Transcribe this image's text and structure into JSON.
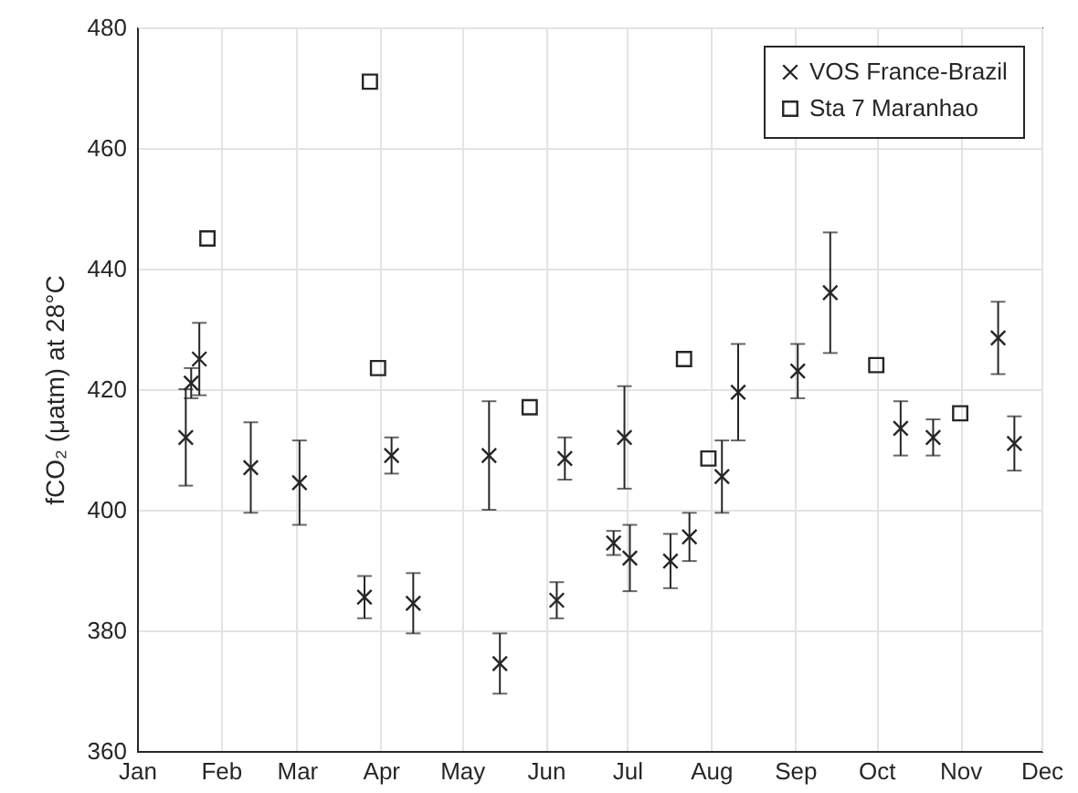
{
  "chart_data": {
    "type": "scatter",
    "ylabel": "fCO₂ (μatm) at 28°C",
    "xlim": [
      "--01-01",
      "--12-01"
    ],
    "xticks": [
      {
        "value": "--01-01",
        "label": "Jan"
      },
      {
        "value": "--02-01",
        "label": "Feb"
      },
      {
        "value": "--03-01",
        "label": "Mar"
      },
      {
        "value": "--04-01",
        "label": "Apr"
      },
      {
        "value": "--05-01",
        "label": "May"
      },
      {
        "value": "--06-01",
        "label": "Jun"
      },
      {
        "value": "--07-01",
        "label": "Jul"
      },
      {
        "value": "--08-01",
        "label": "Aug"
      },
      {
        "value": "--09-01",
        "label": "Sep"
      },
      {
        "value": "--10-01",
        "label": "Oct"
      },
      {
        "value": "--11-01",
        "label": "Nov"
      },
      {
        "value": "--12-01",
        "label": "Dec"
      }
    ],
    "ylim": [
      360,
      480
    ],
    "yticks": [
      360,
      380,
      400,
      420,
      440,
      460,
      480
    ],
    "grid": true,
    "legend": "top right",
    "series": [
      {
        "name": "VOS France-Brazil",
        "color": "#262626",
        "marker": "cross",
        "x": [
          "--01-19",
          "--01-21",
          "--01-24",
          "--02-12",
          "--03-02",
          "--03-26",
          "--04-05",
          "--04-13",
          "--05-11",
          "--05-15",
          "--06-05",
          "--06-08",
          "--06-26",
          "--06-30",
          "--07-02",
          "--07-17",
          "--07-24",
          "--08-05",
          "--08-11",
          "--09-02",
          "--09-14",
          "--10-10",
          "--10-22",
          "--11-15",
          "--11-21"
        ],
        "values": [
          412,
          421,
          425,
          407,
          404.5,
          385.5,
          409,
          384.5,
          409,
          374.5,
          385,
          408.5,
          394.5,
          412,
          392,
          391.5,
          395.5,
          405.5,
          419.5,
          423,
          436,
          413.5,
          412,
          428.5,
          411
        ],
        "errors": [
          8,
          2.5,
          6,
          7.5,
          7,
          3.5,
          3,
          5,
          9,
          5,
          3,
          3.5,
          2,
          8.5,
          5.5,
          4.5,
          4,
          6,
          8,
          4.5,
          10,
          4.5,
          3,
          6,
          4.5
        ]
      },
      {
        "name": "Sta 7 Maranhao",
        "color": "#262626",
        "marker": "square",
        "x": [
          "--01-27",
          "--03-28",
          "--03-31",
          "--05-26",
          "--07-22",
          "--07-31",
          "--10-01",
          "--11-01"
        ],
        "values": [
          445,
          471,
          423.5,
          417,
          425,
          408.5,
          424,
          416
        ]
      }
    ]
  }
}
